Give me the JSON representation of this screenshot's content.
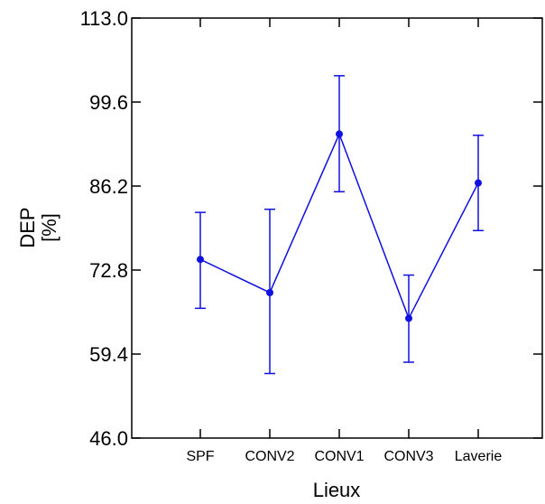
{
  "chart_data": {
    "type": "line",
    "title": "",
    "xlabel": "Lieux",
    "ylabel_line1": "DEP",
    "ylabel_line2": "[%]",
    "ylim": [
      46.0,
      113.0
    ],
    "yticks": [
      "46.0",
      "59.4",
      "72.8",
      "86.2",
      "99.6",
      "113.0"
    ],
    "categories": [
      "SPF",
      "CONV2",
      "CONV1",
      "CONV3",
      "Laverie"
    ],
    "series": [
      {
        "values": [
          74.5,
          69.2,
          94.5,
          65.1,
          86.7
        ],
        "err_low": [
          66.7,
          56.3,
          85.3,
          58.1,
          79.1
        ],
        "err_high": [
          82.0,
          82.5,
          103.8,
          72.0,
          94.3
        ],
        "color": "#1010e0"
      }
    ],
    "grid": false
  }
}
